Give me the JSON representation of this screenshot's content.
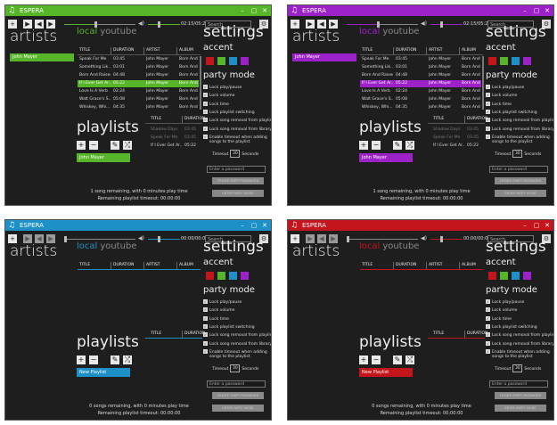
{
  "app_title": "ESPERA",
  "colors": {
    "green": "#56b528",
    "purple": "#9d21c8",
    "blue": "#1e90c8",
    "red": "#c4151c",
    "swatch_red": "#c4151c",
    "swatch_green": "#56b528",
    "swatch_blue": "#1e90c8",
    "swatch_purple": "#9d21c8"
  },
  "window_controls": {
    "minimize": "–",
    "maximize": "▢",
    "close": "✕"
  },
  "icons": {
    "app": "music-note-icon",
    "add": "plus-icon",
    "play": "play-icon",
    "prev": "previous-icon",
    "next": "next-icon",
    "volume": "volume-icon",
    "settings": "gear-icon",
    "remove": "minus-icon",
    "rename": "pencil-icon",
    "shuffle": "shuffle-icon"
  },
  "labels": {
    "artists": "artists",
    "tab_local": "local",
    "tab_youtube": "youtube",
    "playlists": "playlists",
    "settings": "settings",
    "accent": "accent",
    "party_mode": "party mode",
    "search_placeholder": "Search",
    "password_placeholder": "Enter a password",
    "set_password": "CREATE PARTY PASSWORD",
    "party_mode_button": "ENTER PARTY MODE",
    "timeout_label": "Timeout",
    "timeout_value": "30",
    "timeout_unit": "Seconds"
  },
  "columns": [
    "TITLE",
    "DURATION",
    "ARTIST",
    "ALBUM"
  ],
  "queue_columns": [
    "TITLE",
    "DURATION"
  ],
  "settings_options": [
    "Lock play/pause",
    "Lock volume",
    "Lock time",
    "Lock playlist switching",
    "Lock song removal from playlist",
    "Lock song removal from library",
    "Enable timeout when adding",
    "songs to the playlist"
  ],
  "windows": [
    {
      "accent": "#56b528",
      "time": "02:15/05:21",
      "artists": [
        "John Mayer"
      ],
      "songs": [
        [
          "Speak For Me",
          "03:45",
          "John Mayer",
          "Born And"
        ],
        [
          "Something Lik...",
          "03:01",
          "John Mayer",
          "Born And"
        ],
        [
          "Born And Raised",
          "04:48",
          "John Mayer",
          "Born And"
        ],
        [
          "If I Ever Get Ar...",
          "05:22",
          "John Mayer",
          "Born And"
        ],
        [
          "Love Is A Verb",
          "02:24",
          "John Mayer",
          "Born And"
        ],
        [
          "Walt Grace's S...",
          "05:08",
          "John Mayer",
          "Born And"
        ],
        [
          "Whiskey, Whi...",
          "04:35",
          "John Mayer",
          "Born And"
        ]
      ],
      "queue": [
        [
          "Shadow Days",
          "03:45"
        ],
        [
          "Speak For Me",
          "03:45"
        ],
        [
          "If I Ever Get Ar...",
          "05:22"
        ]
      ],
      "playlist": "John Mayer",
      "status": "1 song remaining, with 0 minutes play time",
      "timeout": "Remaining playlist timeout: 00:00:00"
    },
    {
      "accent": "#9d21c8",
      "time": "02:15/05:21",
      "artists": [
        "John Mayer"
      ],
      "songs": [
        [
          "Speak For Me",
          "03:45",
          "John Mayer",
          "Born And"
        ],
        [
          "Something Lik...",
          "03:01",
          "John Mayer",
          "Born And"
        ],
        [
          "Born And Raised",
          "04:48",
          "John Mayer",
          "Born And"
        ],
        [
          "If I Ever Get Ar...",
          "05:22",
          "John Mayer",
          "Born And"
        ],
        [
          "Love Is A Verb",
          "02:24",
          "John Mayer",
          "Born And"
        ],
        [
          "Walt Grace's S...",
          "05:08",
          "John Mayer",
          "Born And"
        ],
        [
          "Whiskey, Whi...",
          "04:35",
          "John Mayer",
          "Born And"
        ]
      ],
      "queue": [
        [
          "Shadow Days",
          "03:45"
        ],
        [
          "Speak For Me",
          "03:45"
        ],
        [
          "If I Ever Get Ar...",
          "05:22"
        ]
      ],
      "playlist": "John Mayer",
      "status": "1 song remaining, with 0 minutes play time",
      "timeout": "Remaining playlist timeout: 00:00:00"
    },
    {
      "accent": "#1e90c8",
      "time": "00:00/00:00",
      "artists": [],
      "songs": [],
      "queue": [],
      "playlist": "New Playlist",
      "status": "0 songs remaining, with 0 minutes play time",
      "timeout": "Remaining playlist timeout: 00:00:00"
    },
    {
      "accent": "#c4151c",
      "time": "00:00/00:00",
      "artists": [],
      "songs": [],
      "queue": [],
      "playlist": "New Playlist",
      "status": "0 songs remaining, with 0 minutes play time",
      "timeout": "Remaining playlist timeout: 00:00:00"
    }
  ]
}
